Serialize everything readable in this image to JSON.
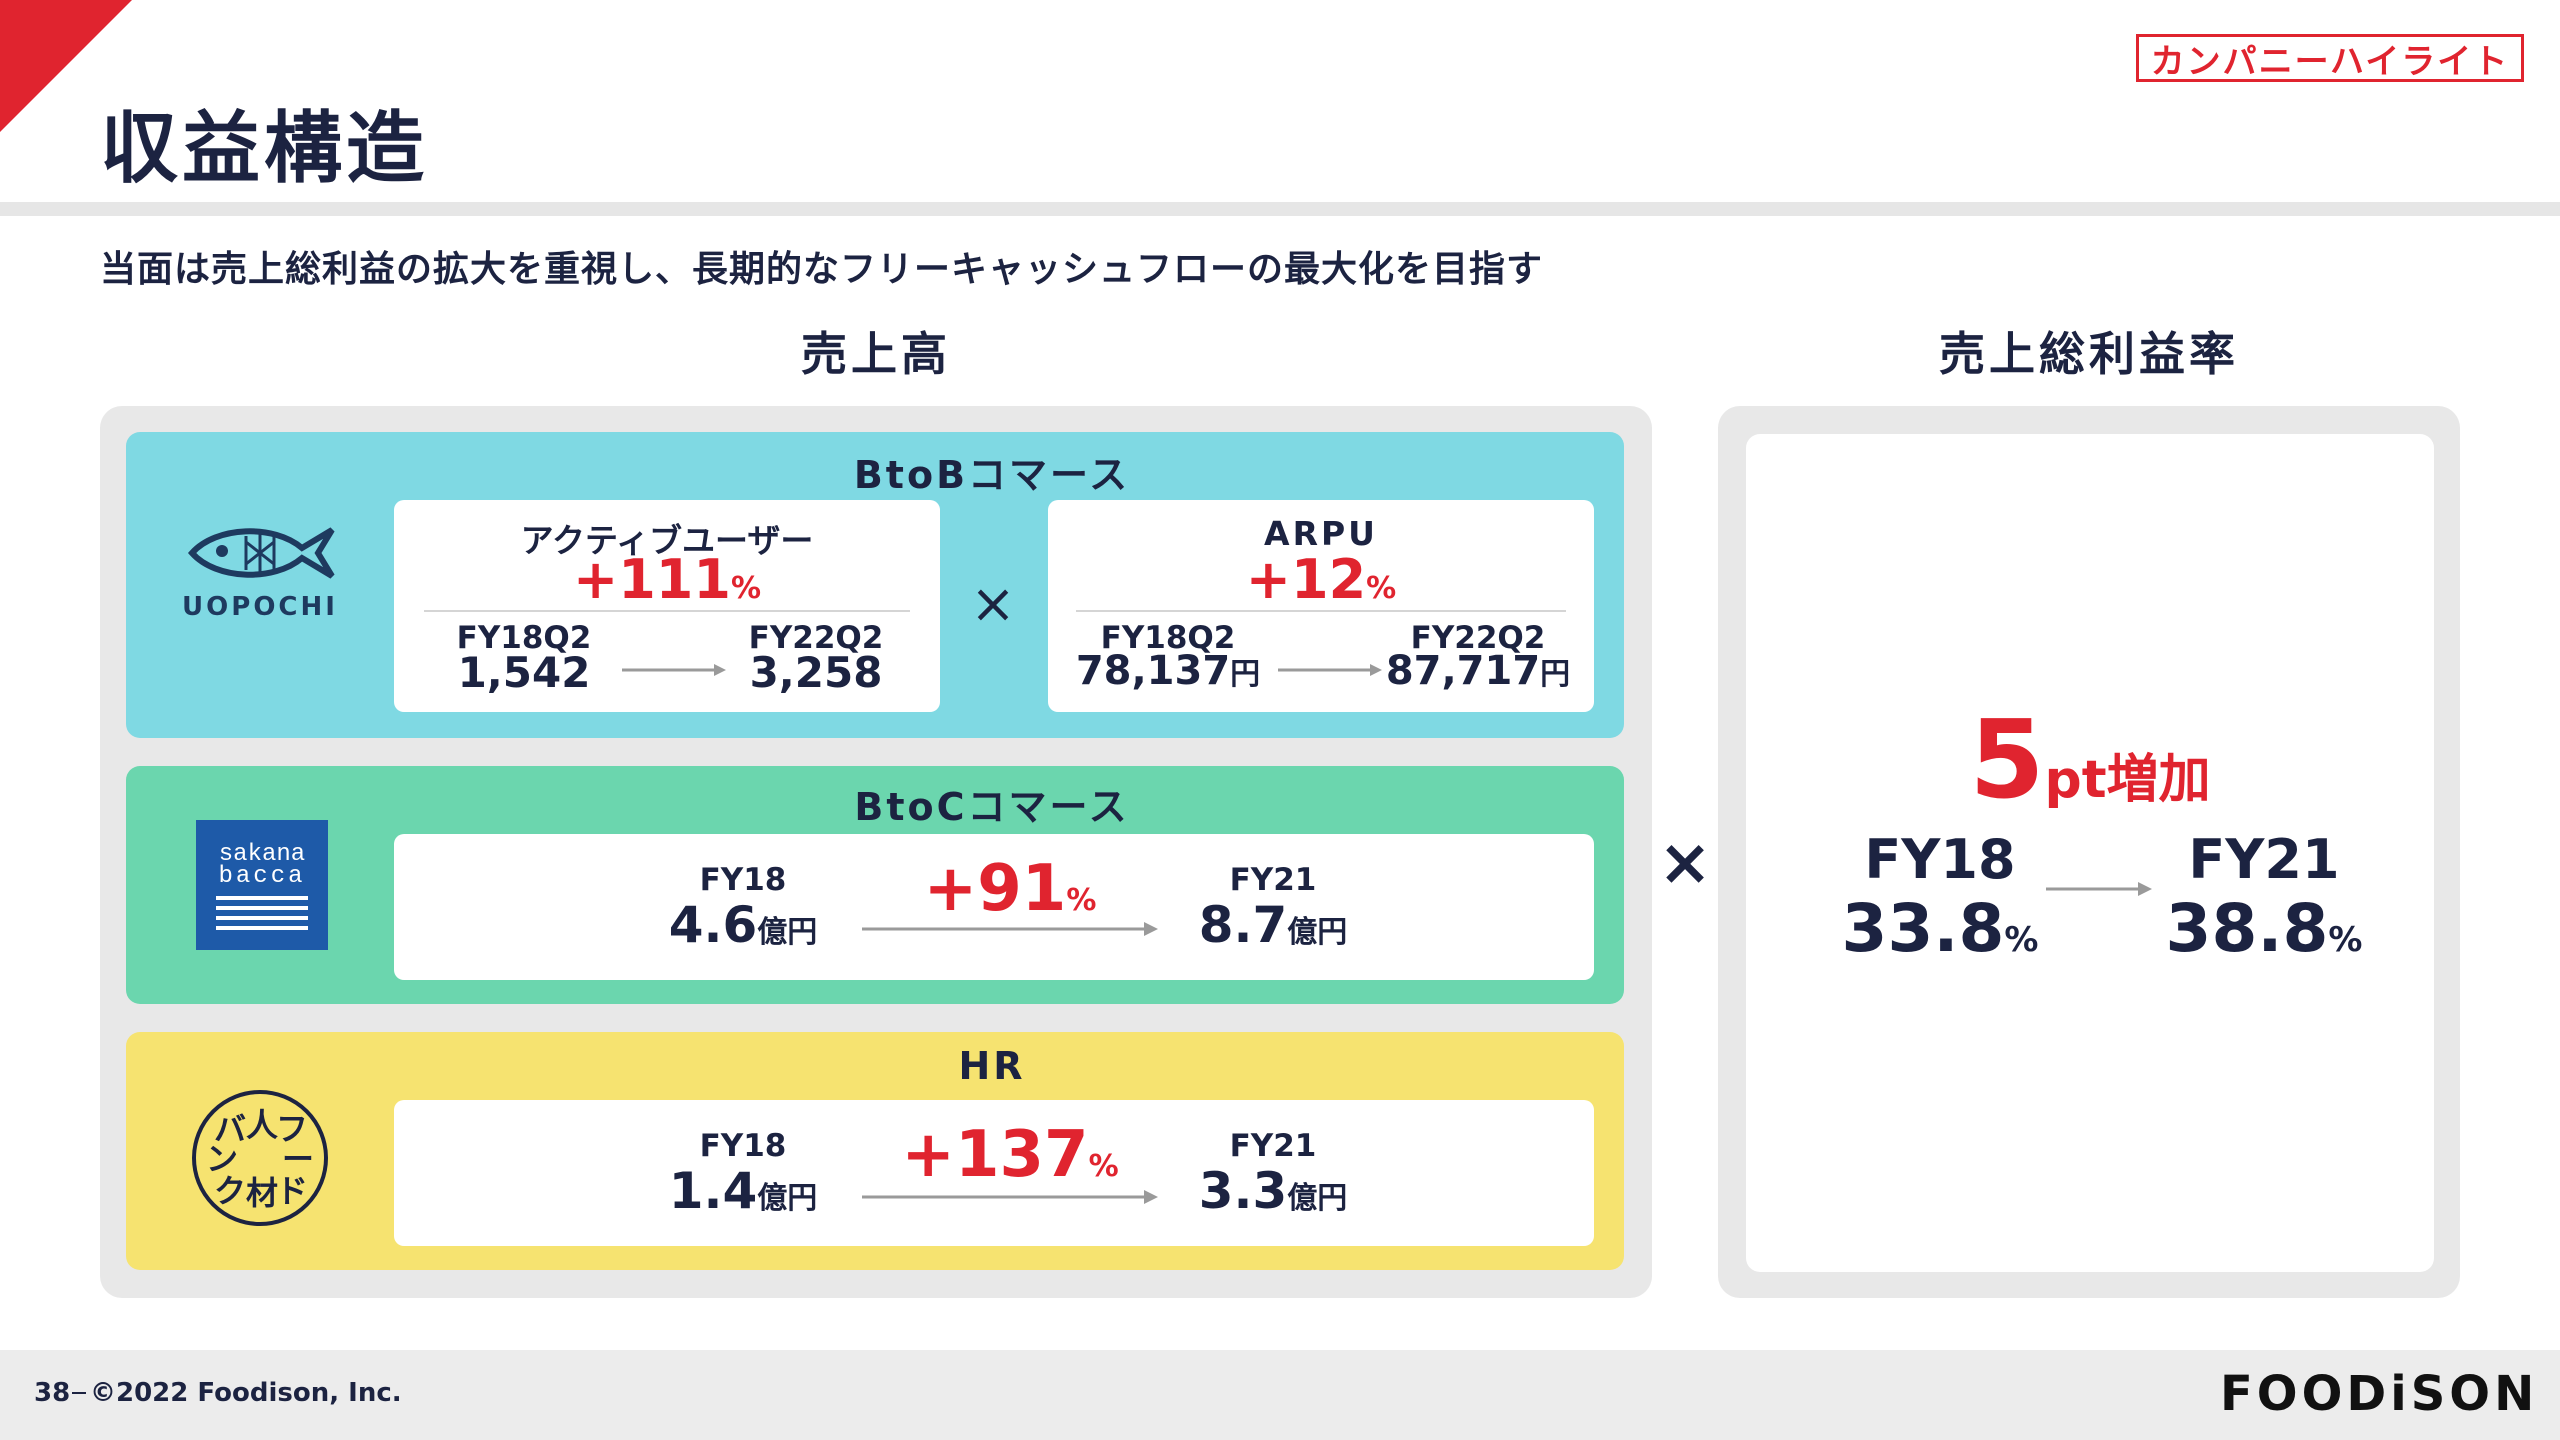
{
  "tag": "カンパニーハイライト",
  "title": "収益構造",
  "subtitle": "当面は売上総利益の拡大を重視し、長期的なフリーキャッシュフローの最大化を目指す",
  "left_heading": "売上高",
  "right_heading": "売上総利益率",
  "multiply_sign": "×",
  "sections": {
    "btob": {
      "title": "BtoBコマース",
      "logo_text": "UOPOCHI",
      "users": {
        "label": "アクティブユーザー",
        "growth": "+111",
        "growth_unit": "%",
        "from_label": "FY18Q2",
        "from_value": "1,542",
        "to_label": "FY22Q2",
        "to_value": "3,258"
      },
      "arpu": {
        "label": "ARPU",
        "growth": "+12",
        "growth_unit": "%",
        "from_label": "FY18Q2",
        "from_value": "78,137",
        "from_unit": "円",
        "to_label": "FY22Q2",
        "to_value": "87,717",
        "to_unit": "円"
      }
    },
    "btoc": {
      "title": "BtoCコマース",
      "logo_line1": "sakana",
      "logo_line2": "bacca",
      "from_label": "FY18",
      "from_value": "4.6",
      "from_unit": "億円",
      "growth": "+91",
      "growth_unit": "%",
      "to_label": "FY21",
      "to_value": "8.7",
      "to_unit": "億円"
    },
    "hr": {
      "title": "HR",
      "logo_chars": "フードフ人材バンク",
      "from_label": "FY18",
      "from_value": "1.4",
      "from_unit": "億円",
      "growth": "+137",
      "growth_unit": "%",
      "to_label": "FY21",
      "to_value": "3.3",
      "to_unit": "億円"
    }
  },
  "margin": {
    "increase_num": "5",
    "increase_text": "pt増加",
    "from_label": "FY18",
    "from_value": "33.8",
    "from_unit": "%",
    "to_label": "FY21",
    "to_value": "38.8",
    "to_unit": "%"
  },
  "footer": {
    "page_number": "38",
    "copyright": "©2022 Foodison, Inc.",
    "brand": "FOODiSON"
  },
  "colors": {
    "navy": "#1c2341",
    "red": "#e0242f",
    "btob_bg": "#7fd9e3",
    "btoc_bg": "#6bd6ae",
    "hr_bg": "#f6e370",
    "frame": "#e8e8e8",
    "sakana_logo": "#1e5aa8"
  }
}
